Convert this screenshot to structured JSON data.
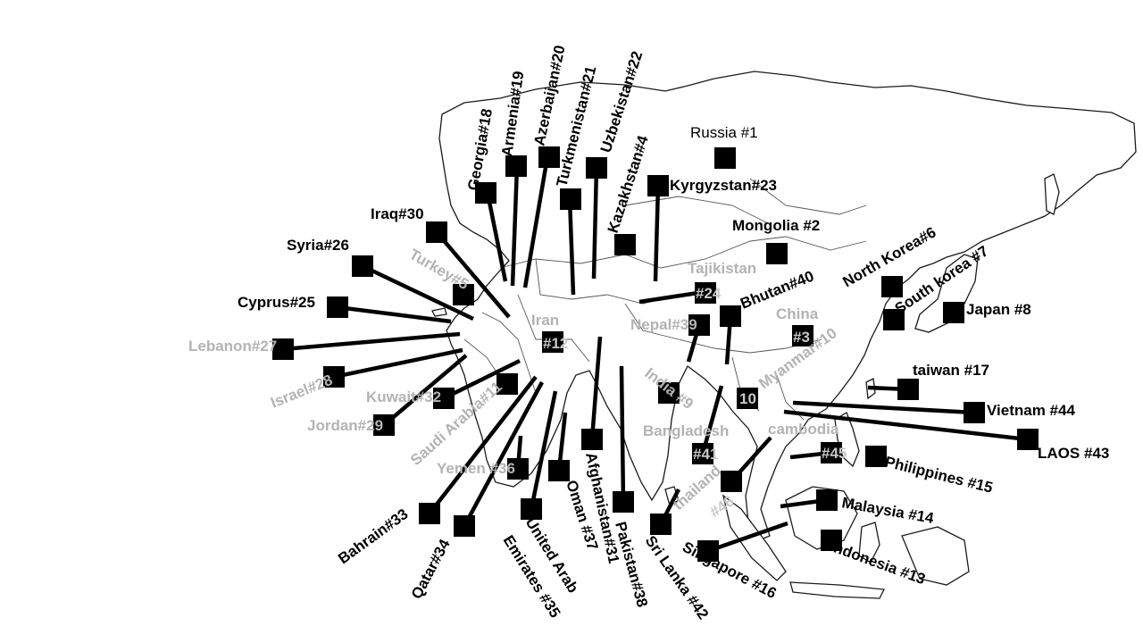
{
  "map_labels": {
    "russia": "Russia #1",
    "mongolia": "Mongolia #2",
    "china": "China",
    "china_num": "#3",
    "kazakhstan": "Kazakhstan#4",
    "turkey": "Turkey#5",
    "north_korea": "North Korea#6",
    "south_korea": "South korea #7",
    "japan": "Japan #8",
    "india": "India #9",
    "myanmar": "Myanmar#10",
    "myanmar_num": "10",
    "saudi_arabia": "Saudi Arabia#11",
    "iran": "Iran",
    "iran_num": "#12",
    "indonesia": "Indonesia #13",
    "malaysia": "Malaysia #14",
    "philippines": "Philippines #15",
    "singapore": "Singapore #16",
    "taiwan": "taiwan #17",
    "georgia": "Georgia#18",
    "armenia": "Armenia#19",
    "azerbaijan": "Azerbaijan#20",
    "turkmenistan": "Turkmenistan#21",
    "uzbekistan": "Uzbekistan#22",
    "kyrgyzstan": "Kyrgyzstan#23",
    "tajikistan": "Tajikistan",
    "tajikistan_num": "#24",
    "cyprus": "Cyprus#25",
    "syria": "Syria#26",
    "lebanon": "Lebanon#27",
    "israel": "Israel#28",
    "jordan": "Jordan#29",
    "iraq": "Iraq#30",
    "afghanistan": "Afghanistan#31",
    "kuwait": "Kuwait#32",
    "bahrain": "Bahrain#33",
    "qatar": "Qatar#34",
    "uae_line1": "United Arab",
    "uae_line2": "Emirates #35",
    "yemen": "Yemen #36",
    "oman": "Oman #37",
    "pakistan": "Pakistan#38",
    "nepal": "Nepal#39",
    "bhutan": "Bhutan#40",
    "bangladesh": "Bangladesh",
    "bangladesh_num": "#41",
    "sri_lanka": "Sri Lanka #42",
    "laos": "LAOS #43",
    "vietnam": "Vietnam #44",
    "cambodia": "cambodia",
    "cambodia_num": "#45",
    "thailand": "thailand",
    "thailand_num": "#46"
  }
}
